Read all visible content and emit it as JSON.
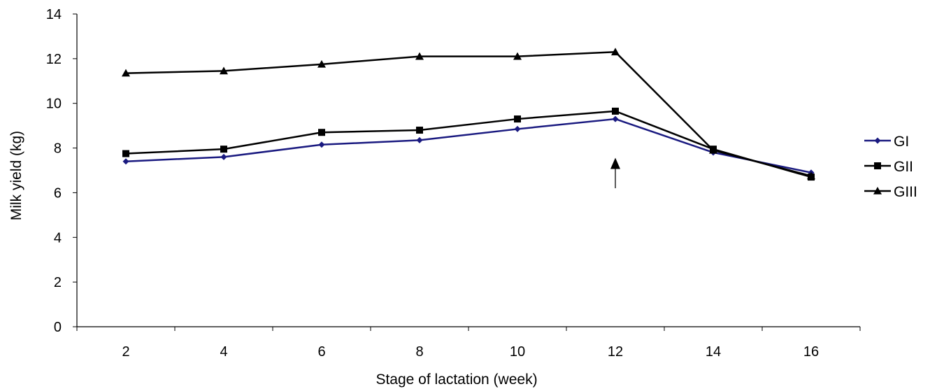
{
  "chart_data": {
    "type": "line",
    "title": "",
    "xlabel": "Stage of lactation  (week)",
    "ylabel": "Milk yield (kg)",
    "categories": [
      "2",
      "4",
      "6",
      "8",
      "10",
      "12",
      "14",
      "16"
    ],
    "yticks": [
      "0",
      "2",
      "4",
      "6",
      "8",
      "10",
      "12",
      "14"
    ],
    "ylim": [
      0,
      14
    ],
    "grid": false,
    "legend_position": "right",
    "series": [
      {
        "name": "GI",
        "marker": "diamond",
        "color": "#1a1a80",
        "values": [
          7.4,
          7.6,
          8.15,
          8.35,
          8.85,
          9.3,
          7.8,
          6.9
        ]
      },
      {
        "name": "GII",
        "marker": "square",
        "color": "#000000",
        "values": [
          7.75,
          7.95,
          8.7,
          8.8,
          9.3,
          9.65,
          7.95,
          6.7
        ]
      },
      {
        "name": "GIII",
        "marker": "triangle",
        "color": "#000000",
        "values": [
          11.35,
          11.45,
          11.75,
          12.1,
          12.1,
          12.3,
          7.9,
          6.75
        ]
      }
    ],
    "annotation": {
      "type": "arrow",
      "category": "12",
      "from_y": 6.2,
      "to_y": 7.5
    }
  }
}
